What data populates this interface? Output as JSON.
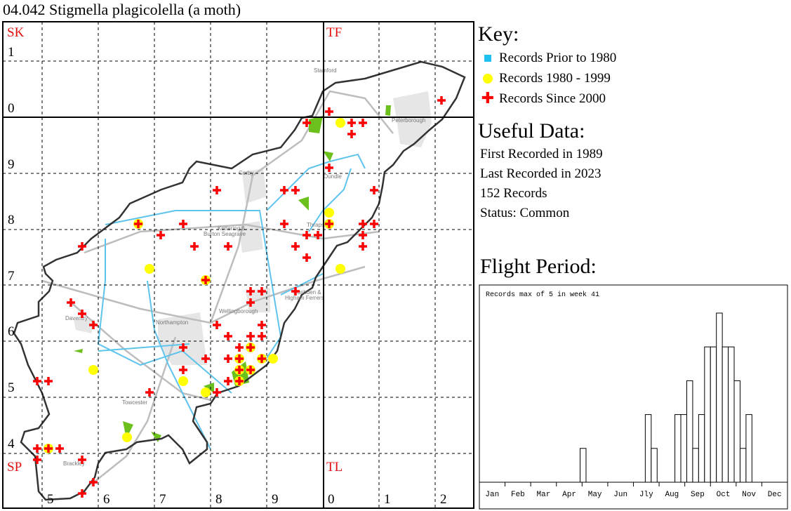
{
  "title": "04.042 Stigmella plagicolella (a moth)",
  "map": {
    "grid_square_labels": [
      "SK",
      "TF",
      "SP",
      "TL"
    ],
    "northing_labels": [
      "1",
      "0",
      "9",
      "8",
      "7",
      "6",
      "5",
      "4"
    ],
    "easting_labels": [
      "5",
      "6",
      "7",
      "8",
      "9",
      "0",
      "1",
      "2"
    ],
    "towns": [
      "Stamford",
      "Peterborough",
      "Corby",
      "Oundle",
      "Kettering &",
      "Burton Seagrave",
      "Thrapston",
      "Wellingborough",
      "Rushden &",
      "Higham Ferrers",
      "Daventry",
      "Northampton",
      "Towcester",
      "Brackley"
    ],
    "colors": {
      "prior_1980": "#1ec0f0",
      "1980_1999": "#ffff00",
      "since_2000": "#ff0000",
      "grid_label": "#e01010"
    },
    "records_1980_1999_km": [
      [
        503,
        299
      ],
      [
        501,
        283
      ],
      [
        467,
        281
      ],
      [
        469,
        273
      ],
      [
        503,
        273
      ],
      [
        479,
        271
      ],
      [
        459,
        255
      ],
      [
        475,
        253
      ],
      [
        479,
        251
      ],
      [
        465,
        243
      ],
      [
        451,
        241
      ],
      [
        485,
        257
      ],
      [
        487,
        259
      ],
      [
        485,
        255
      ],
      [
        487,
        255
      ],
      [
        485,
        253
      ],
      [
        489,
        257
      ],
      [
        491,
        257
      ],
      [
        501,
        281
      ]
    ],
    "records_since_2000_km": [
      [
        521,
        303
      ],
      [
        501,
        301
      ],
      [
        497,
        299
      ],
      [
        505,
        299
      ],
      [
        507,
        299
      ],
      [
        505,
        297
      ],
      [
        501,
        291
      ],
      [
        509,
        287
      ],
      [
        481,
        287
      ],
      [
        493,
        287
      ],
      [
        495,
        287
      ],
      [
        467,
        281
      ],
      [
        475,
        281
      ],
      [
        493,
        281
      ],
      [
        501,
        281
      ],
      [
        507,
        281
      ],
      [
        509,
        281
      ],
      [
        471,
        279
      ],
      [
        497,
        279
      ],
      [
        499,
        279
      ],
      [
        507,
        279
      ],
      [
        457,
        277
      ],
      [
        477,
        277
      ],
      [
        483,
        277
      ],
      [
        495,
        277
      ],
      [
        507,
        277
      ],
      [
        497,
        275
      ],
      [
        479,
        271
      ],
      [
        487,
        269
      ],
      [
        489,
        269
      ],
      [
        495,
        269
      ],
      [
        455,
        267
      ],
      [
        487,
        267
      ],
      [
        457,
        265
      ],
      [
        459,
        263
      ],
      [
        489,
        263
      ],
      [
        481,
        263
      ],
      [
        483,
        261
      ],
      [
        487,
        261
      ],
      [
        489,
        261
      ],
      [
        485,
        259
      ],
      [
        487,
        259
      ],
      [
        475,
        259
      ],
      [
        479,
        257
      ],
      [
        483,
        257
      ],
      [
        485,
        257
      ],
      [
        489,
        257
      ],
      [
        485,
        255
      ],
      [
        487,
        255
      ],
      [
        475,
        255
      ],
      [
        483,
        253
      ],
      [
        485,
        253
      ],
      [
        481,
        251
      ],
      [
        469,
        251
      ],
      [
        449,
        253
      ],
      [
        451,
        253
      ],
      [
        449,
        241
      ],
      [
        451,
        241
      ],
      [
        453,
        241
      ],
      [
        449,
        239
      ],
      [
        457,
        239
      ],
      [
        459,
        235
      ],
      [
        457,
        233
      ]
    ]
  },
  "key": {
    "heading": "Key:",
    "items": [
      {
        "label": "Records Prior to 1980",
        "icon": "blue-square-icon"
      },
      {
        "label": "Records 1980 - 1999",
        "icon": "yellow-dot-icon"
      },
      {
        "label": "Records Since 2000",
        "icon": "red-cross-icon"
      }
    ]
  },
  "useful_data": {
    "heading": "Useful Data:",
    "first": "First Recorded in 1989",
    "last": "Last Recorded in 2023",
    "count": "152 Records",
    "status": "Status: Common"
  },
  "flight": {
    "heading": "Flight Period:"
  },
  "chart_data": {
    "type": "bar",
    "title": "Records max of 5 in week 41",
    "x": "week",
    "month_labels": [
      "Jan",
      "Feb",
      "Mar",
      "Apr",
      "May",
      "Jun",
      "Jly",
      "Aug",
      "Sep",
      "Oct",
      "Nov",
      "Dec"
    ],
    "values": [
      0,
      0,
      0,
      0,
      0,
      0,
      0,
      0,
      0,
      0,
      0,
      0,
      0,
      0,
      0,
      0,
      0,
      1,
      0,
      0,
      0,
      0,
      0,
      0,
      0,
      0,
      0,
      0,
      2,
      1,
      0,
      0,
      0,
      2,
      2,
      3,
      1,
      2,
      4,
      4,
      5,
      4,
      4,
      3,
      1,
      2,
      0,
      0,
      0,
      0,
      0,
      0
    ],
    "ylim": [
      0,
      5
    ],
    "grid": false
  }
}
